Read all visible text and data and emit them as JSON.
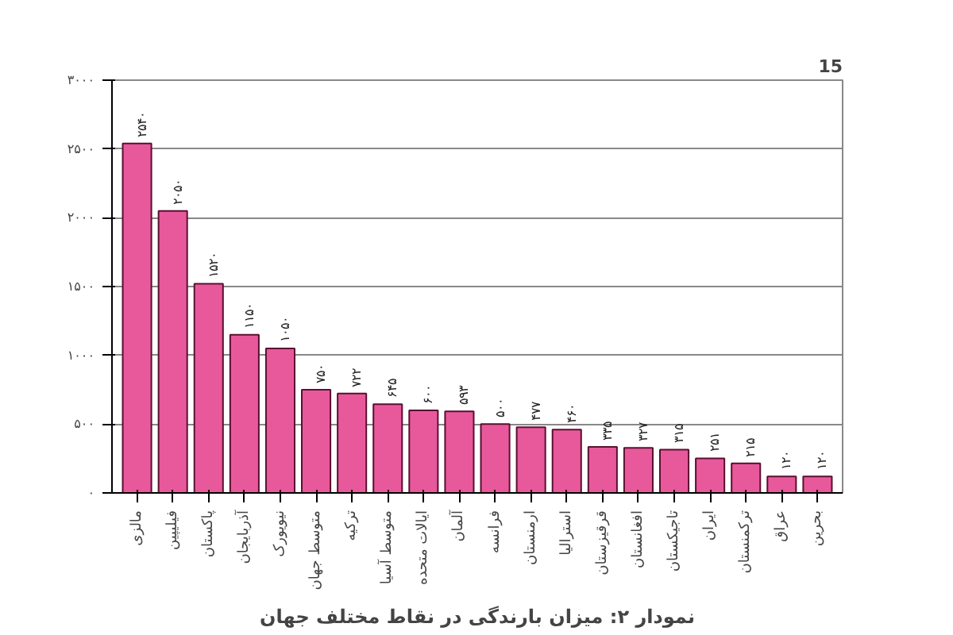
{
  "chart_data": {
    "type": "bar",
    "title": "نمودار ۲: میزان بارندگی در نقاط مختلف جهان",
    "categories": [
      "مالزی",
      "فیلیپین",
      "پاکستان",
      "آذربایجان",
      "نیویورک",
      "متوسط جهان",
      "ترکیه",
      "متوسط آسیا",
      "ایالات متحده",
      "آلمان",
      "فرانسه",
      "ارمنستان",
      "استرالیا",
      "قرقیزستان",
      "افغانستان",
      "تاجیکستان",
      "ایران",
      "ترکمنستان",
      "عراق",
      "بحرین"
    ],
    "values": [
      2540,
      2050,
      1520,
      1150,
      1050,
      750,
      722,
      645,
      600,
      593,
      500,
      477,
      460,
      335,
      327,
      315,
      251,
      215,
      120,
      120
    ],
    "value_labels": [
      "۲۵۴۰",
      "۲۰۵۰",
      "۱۵۲۰",
      "۱۱۵۰",
      "۱۰۵۰",
      "۷۵۰",
      "۷۲۲",
      "۶۴۵",
      "۶۰۰",
      "۵۹۳",
      "۵۰۰",
      "۴۷۷",
      "۴۶۰",
      "۳۳۵",
      "۳۲۷",
      "۳۱۵",
      "۲۵۱",
      "۲۱۵",
      "۱۲۰",
      "۱۲۰"
    ],
    "color": "#e8599c",
    "ylim": [
      0,
      3000
    ],
    "yticks": [
      {
        "value": 0,
        "label": "۰"
      },
      {
        "value": 500,
        "label": "۵۰۰"
      },
      {
        "value": 1000,
        "label": "۱۰۰۰"
      },
      {
        "value": 1500,
        "label": "۱۵۰۰"
      },
      {
        "value": 2000,
        "label": "۲۰۰۰"
      },
      {
        "value": 2500,
        "label": "۲۵۰۰"
      },
      {
        "value": 3000,
        "label": "۳۰۰۰"
      }
    ],
    "grid": "y",
    "annotations": [
      "15"
    ]
  }
}
